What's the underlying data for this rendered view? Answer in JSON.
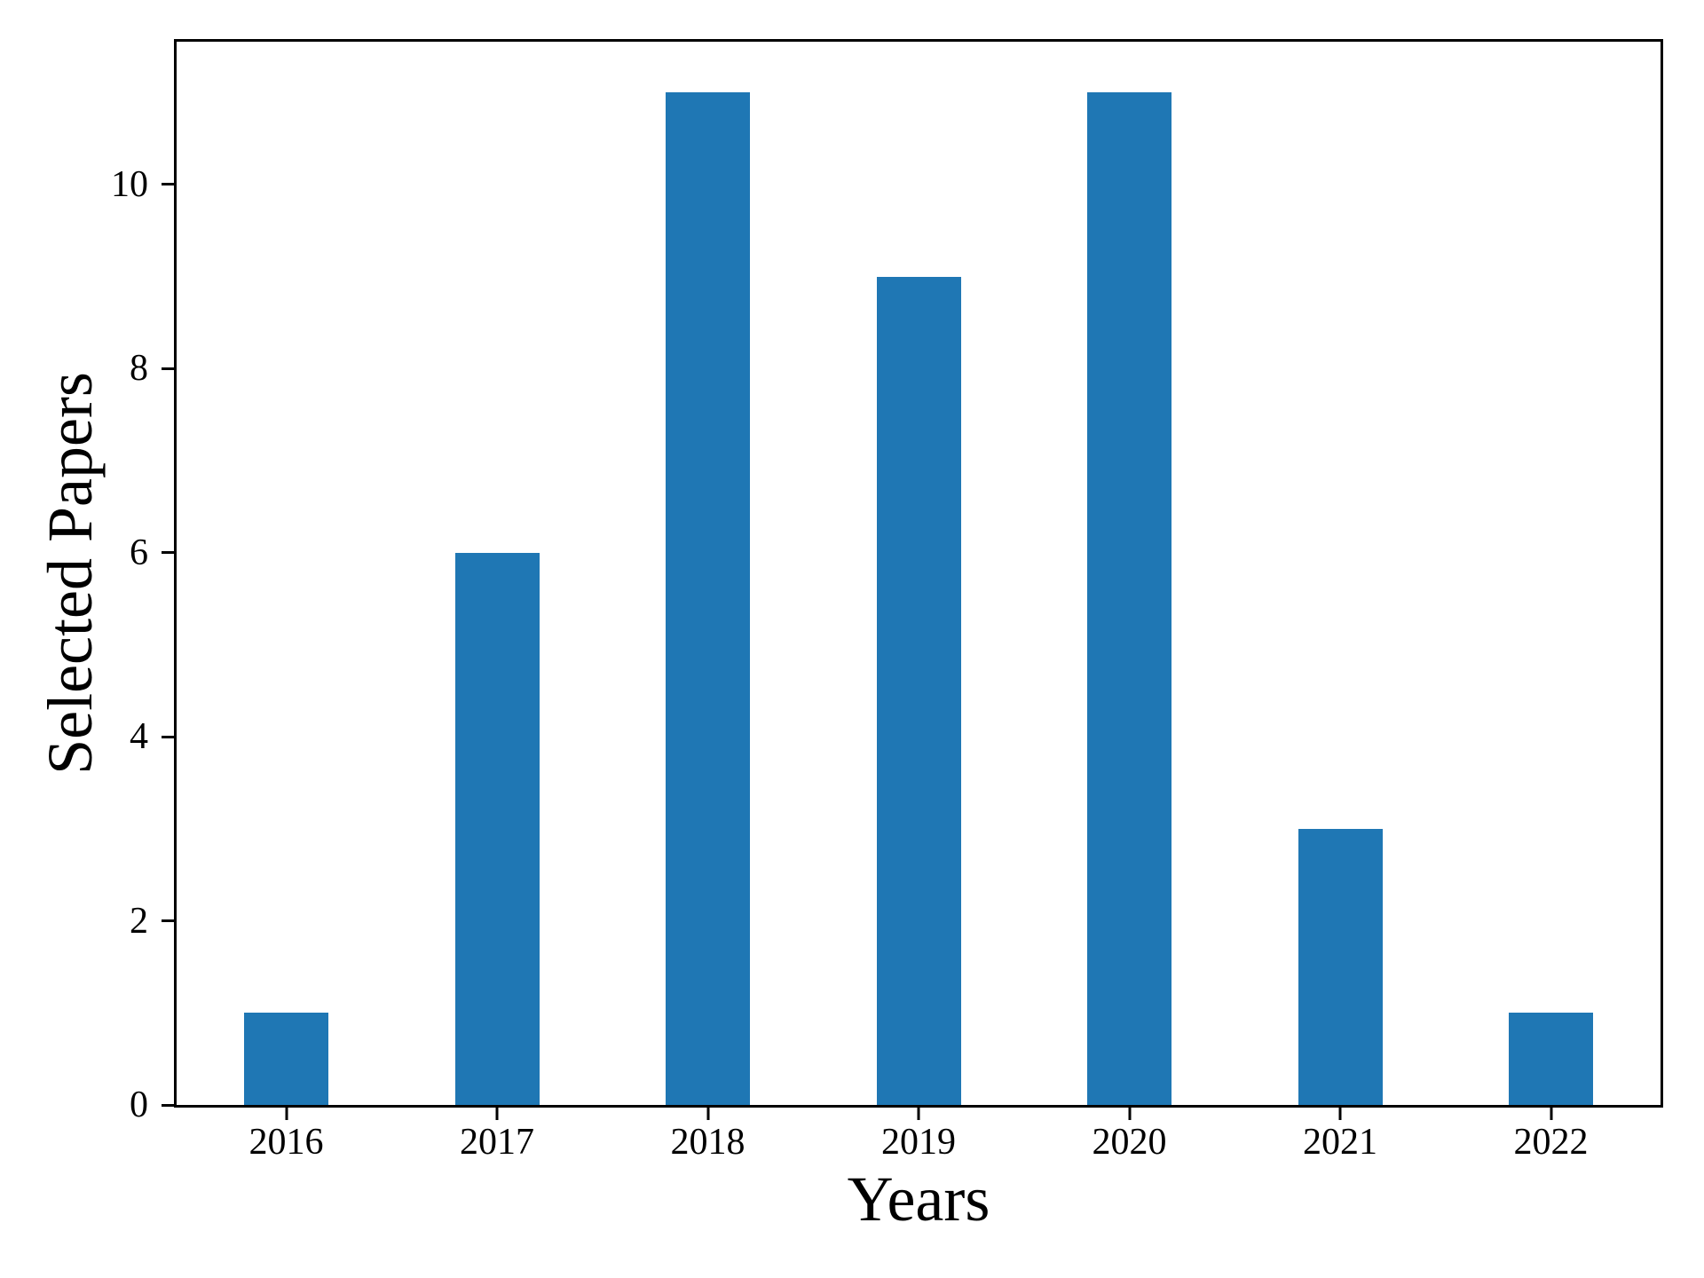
{
  "figure": {
    "background": "#ffffff"
  },
  "chart_data": {
    "type": "bar",
    "title": "",
    "xlabel": "Years",
    "ylabel": "Selected Papers",
    "categories": [
      "2016",
      "2017",
      "2018",
      "2019",
      "2020",
      "2021",
      "2022"
    ],
    "values": [
      1,
      6,
      11,
      9,
      11,
      3,
      1
    ],
    "series": [
      {
        "name": "Selected Papers",
        "values": [
          1,
          6,
          11,
          9,
          11,
          3,
          1
        ]
      }
    ],
    "yticks": [
      0,
      2,
      4,
      6,
      8,
      10
    ],
    "ylim": [
      0,
      11.55
    ],
    "xlim": [
      -0.52,
      6.52
    ],
    "bar_width_units": 0.4,
    "bar_color": "#1f77b4",
    "axis_color": "#000000",
    "grid": false,
    "legend_position": "none"
  }
}
